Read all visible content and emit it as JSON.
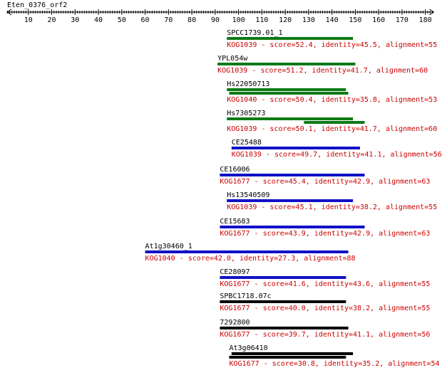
{
  "query": {
    "name": "Eten_0376_orf2",
    "ruler_ticks": [
      10,
      20,
      30,
      40,
      50,
      60,
      70,
      80,
      90,
      100,
      110,
      120,
      130,
      140,
      150,
      160,
      170,
      180
    ],
    "max": 183
  },
  "colors": {
    "green": "#0b7a16",
    "blue": "#1010c8",
    "black": "#000000",
    "label": "#000000",
    "desc": "#cc0000"
  },
  "hits": [
    {
      "name": "SPCC1739.01_1",
      "desc": "KOG1039 - score=52.4, identity=45.5, alignment=55",
      "color": "green",
      "segments": [
        {
          "start": 95,
          "end": 149
        }
      ]
    },
    {
      "name": "YPL054w",
      "desc": "KOG1039 - score=51.2, identity=41.7, alignment=60",
      "color": "green",
      "segments": [
        {
          "start": 91,
          "end": 150
        }
      ]
    },
    {
      "name": "Hs22050713",
      "desc": "KOG1040 - score=50.4, identity=35.8, alignment=53",
      "color": "green",
      "segments": [
        {
          "start": 95,
          "end": 146
        },
        {
          "start": 96,
          "end": 147
        }
      ]
    },
    {
      "name": "Hs7305273",
      "desc": "KOG1039 - score=50.1, identity=41.7, alignment=60",
      "color": "green",
      "segments": [
        {
          "start": 95,
          "end": 149
        },
        {
          "start": 128,
          "end": 154
        }
      ]
    },
    {
      "name": "CE25488",
      "desc": "KOG1039 - score=49.7, identity=41.1, alignment=56",
      "color": "blue",
      "segments": [
        {
          "start": 97,
          "end": 152
        }
      ]
    },
    {
      "name": "CE16006",
      "desc": "KOG1677 - score=45.4, identity=42.9, alignment=63",
      "color": "blue",
      "segments": [
        {
          "start": 92,
          "end": 154
        }
      ]
    },
    {
      "name": "Hs13540509",
      "desc": "KOG1039 - score=45.1, identity=38.2, alignment=55",
      "color": "blue",
      "segments": [
        {
          "start": 95,
          "end": 149
        }
      ]
    },
    {
      "name": "CE15683",
      "desc": "KOG1677 - score=43.9, identity=42.9, alignment=63",
      "color": "blue",
      "segments": [
        {
          "start": 92,
          "end": 154
        }
      ]
    },
    {
      "name": "At1g30460_1",
      "desc": "KOG1040 - score=42.0, identity=27.3, alignment=88",
      "color": "blue",
      "segments": [
        {
          "start": 60,
          "end": 147
        }
      ]
    },
    {
      "name": "CE28097",
      "desc": "KOG1677 - score=41.6, identity=43.6, alignment=55",
      "color": "blue",
      "segments": [
        {
          "start": 92,
          "end": 146
        }
      ]
    },
    {
      "name": "SPBC1718.07c",
      "desc": "KOG1677 - score=40.0, identity=38.2, alignment=55",
      "color": "black",
      "segments": [
        {
          "start": 92,
          "end": 146
        }
      ]
    },
    {
      "name": "7292800",
      "desc": "KOG1677 - score=39.7, identity=41.1, alignment=56",
      "color": "black",
      "segments": [
        {
          "start": 92,
          "end": 147
        }
      ]
    },
    {
      "name": "At3g06410",
      "desc": "KOG1677 - score=30.8, identity=35.2, alignment=54",
      "color": "black",
      "segments": [
        {
          "start": 97,
          "end": 149
        },
        {
          "start": 96,
          "end": 146
        }
      ]
    }
  ]
}
